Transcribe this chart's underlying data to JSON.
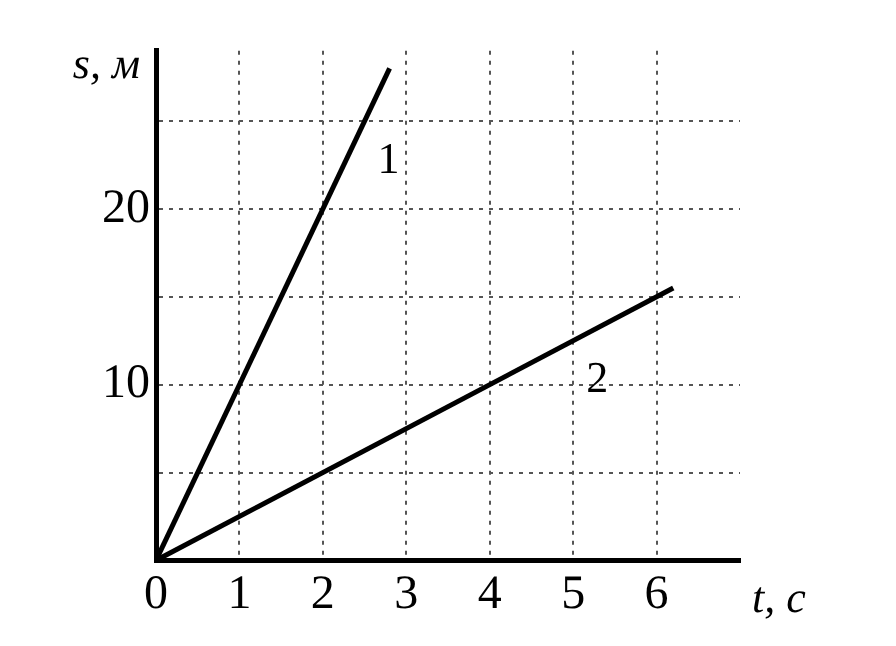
{
  "chart_data": {
    "type": "line",
    "xlabel": "t, с",
    "ylabel": "s, м",
    "series": [
      {
        "color": "#000000",
        "x": [
          0,
          2.8
        ],
        "values": [
          0,
          28
        ]
      },
      {
        "color": "#000000",
        "x": [
          0,
          6.2
        ],
        "values": [
          0,
          15.5
        ]
      }
    ],
    "xlim": [
      0,
      7
    ],
    "ylim": [
      0,
      29
    ],
    "xticks": [
      0,
      1,
      2,
      3,
      4,
      5,
      6
    ],
    "yticks": [
      {
        "value": 0,
        "label": null
      },
      {
        "value": 5,
        "label": null
      },
      10,
      {
        "value": 15,
        "label": null
      },
      20,
      {
        "value": 25,
        "label": null
      }
    ],
    "grid": true,
    "line_style": "solid",
    "marker": "none",
    "legend": false,
    "annotations": [
      {
        "text": "1",
        "x": 2.5,
        "y": 25
      },
      {
        "text": "2",
        "x": 5,
        "y": 12.5
      }
    ]
  }
}
